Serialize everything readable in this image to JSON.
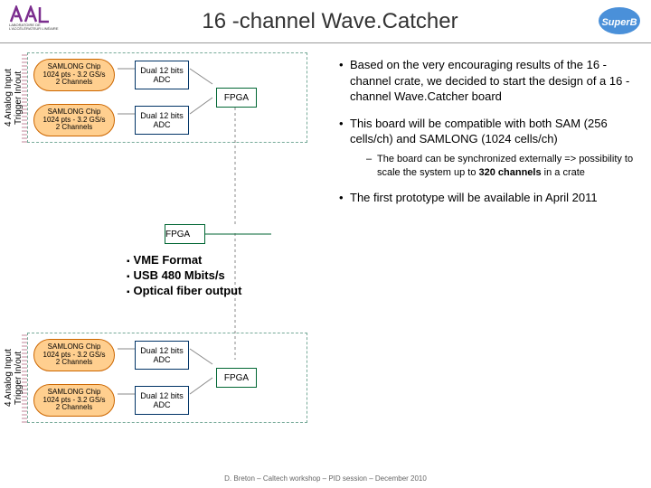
{
  "title": "16 -channel Wave.Catcher",
  "logo_left_sub": "LABORATOIRE\nDE L'ACCÉLÉRATEUR\nLINÉAIRE",
  "logo_right": "SuperB",
  "vlabel": "4 Analog Input\nTrigger In/out",
  "chip": {
    "l1": "SAMLONG Chip",
    "l2": "1024 pts - 3.2 GS/s",
    "l3": "2 Channels"
  },
  "adc": {
    "l1": "Dual 12 bits",
    "l2": "ADC"
  },
  "fpga": "FPGA",
  "features": {
    "f1": "VME Format",
    "f2": "USB 480 Mbits/s",
    "f3": "Optical fiber output"
  },
  "bullets": {
    "b1": "Based on the very encouraging results of the 16 -channel crate, we decided to start the design of a 16 -channel Wave.Catcher board",
    "b2": "This board will be compatible with both SAM (256 cells/ch) and SAMLONG (1024 cells/ch)",
    "b2s": "The board can be synchronized externally => possibility to scale the system up to 320 channels in a crate",
    "b3": "The first prototype will be available in April 2011"
  },
  "footer": "D. Breton – Caltech workshop – PID session – December 2010",
  "colors": {
    "chip_bg": "#ffcf8f",
    "chip_bd": "#c60",
    "adc_bd": "#036",
    "fpga_bd": "#063",
    "dash": "#7a9"
  }
}
